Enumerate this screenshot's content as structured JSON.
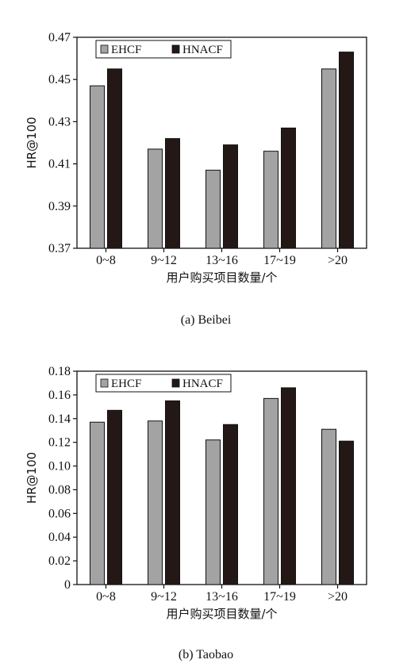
{
  "colors": {
    "ehcf": "#a3a3a3",
    "hnacf": "#231815",
    "axis": "#111111"
  },
  "chart_data": [
    {
      "type": "bar",
      "caption": "(a) Beibei",
      "categories": [
        "0~8",
        "9~12",
        "13~16",
        "17~19",
        ">20"
      ],
      "series": [
        {
          "name": "EHCF",
          "values": [
            0.447,
            0.417,
            0.407,
            0.416,
            0.455
          ]
        },
        {
          "name": "HNACF",
          "values": [
            0.455,
            0.422,
            0.419,
            0.427,
            0.463
          ]
        }
      ],
      "xlabel": "用户购买项目数量/个",
      "ylabel": "HR@100",
      "ylim": [
        0.37,
        0.47
      ],
      "yticks": [
        "0.37",
        "0.39",
        "0.41",
        "0.43",
        "0.45",
        "0.47"
      ],
      "legend": "top-left",
      "grid": false
    },
    {
      "type": "bar",
      "caption": "(b) Taobao",
      "categories": [
        "0~8",
        "9~12",
        "13~16",
        "17~19",
        ">20"
      ],
      "series": [
        {
          "name": "EHCF",
          "values": [
            0.137,
            0.138,
            0.122,
            0.157,
            0.131
          ]
        },
        {
          "name": "HNACF",
          "values": [
            0.147,
            0.155,
            0.135,
            0.166,
            0.121
          ]
        }
      ],
      "xlabel": "用户购买项目数量/个",
      "ylabel": "HR@100",
      "ylim": [
        0,
        0.18
      ],
      "yticks": [
        "0",
        "0.02",
        "0.04",
        "0.06",
        "0.08",
        "0.10",
        "0.12",
        "0.14",
        "0.16",
        "0.18"
      ],
      "legend": "top-left",
      "grid": false
    }
  ]
}
